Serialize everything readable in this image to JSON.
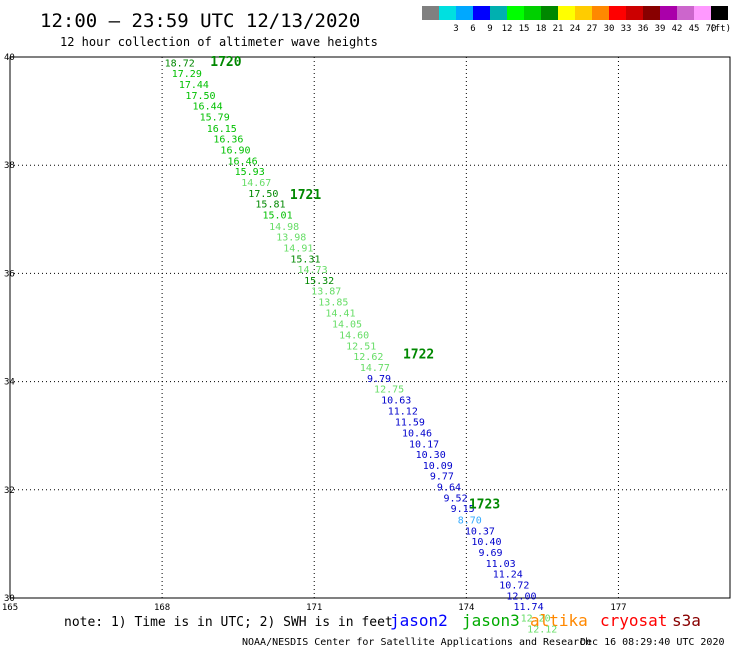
{
  "header": {
    "title": "12:00 — 23:59 UTC 12/13/2020",
    "subtitle": "12 hour collection of altimeter wave heights"
  },
  "legend": {
    "unit": "(ft)",
    "swatches": [
      {
        "color": "#808080",
        "label": ""
      },
      {
        "color": "#00e0e0",
        "label": "3"
      },
      {
        "color": "#00a8ff",
        "label": "6"
      },
      {
        "color": "#0000ff",
        "label": "9"
      },
      {
        "color": "#00b0b0",
        "label": "12"
      },
      {
        "color": "#00ff00",
        "label": "15"
      },
      {
        "color": "#00d000",
        "label": "18"
      },
      {
        "color": "#008800",
        "label": "21"
      },
      {
        "color": "#ffff00",
        "label": "24"
      },
      {
        "color": "#ffcc00",
        "label": "27"
      },
      {
        "color": "#ff8800",
        "label": "30"
      },
      {
        "color": "#ff0000",
        "label": "33"
      },
      {
        "color": "#cc0000",
        "label": "36"
      },
      {
        "color": "#880000",
        "label": "39"
      },
      {
        "color": "#aa00aa",
        "label": "42"
      },
      {
        "color": "#cc66cc",
        "label": "45"
      },
      {
        "color": "#ff99ff",
        "label": "70"
      },
      {
        "color": "#000000",
        "label": ""
      }
    ]
  },
  "axes": {
    "lon_ticks": [
      {
        "lon": 165,
        "label": "165"
      },
      {
        "lon": 168,
        "label": "168"
      },
      {
        "lon": 171,
        "label": "171"
      },
      {
        "lon": 174,
        "label": "174"
      },
      {
        "lon": 177,
        "label": "177"
      }
    ],
    "lat_ticks": [
      {
        "lat": 40,
        "label": "40"
      },
      {
        "lat": 38,
        "label": "38"
      },
      {
        "lat": 36,
        "label": "36"
      },
      {
        "lat": 34,
        "label": "34"
      },
      {
        "lat": 32,
        "label": "32"
      },
      {
        "lat": 30,
        "label": "30"
      }
    ]
  },
  "chart_data": {
    "type": "scatter",
    "title": "12:00 — 23:59 UTC 12/13/2020",
    "subtitle": "12 hour collection of altimeter wave heights",
    "xlim": [
      165,
      179.2
    ],
    "ylim": [
      30,
      40
    ],
    "grid": true,
    "colors": {
      "jason2": "#0000ff",
      "jason3": "#00aa00",
      "altika": "#ff8800",
      "cryosat": "#ff0000",
      "s3a": "#880000",
      "dark_green": "#008800",
      "green": "#00c000",
      "light_green": "#66dd66",
      "blue": "#0000cc",
      "light_blue": "#33aaff"
    },
    "points": [
      {
        "lon": 168.05,
        "lat": 39.9,
        "label": "18.72",
        "color": "#008800"
      },
      {
        "lon": 168.19,
        "lat": 39.7,
        "label": "17.29",
        "color": "#00c000"
      },
      {
        "lon": 168.33,
        "lat": 39.5,
        "label": "17.44",
        "color": "#00c000"
      },
      {
        "lon": 168.46,
        "lat": 39.3,
        "label": "17.50",
        "color": "#00c000"
      },
      {
        "lon": 168.6,
        "lat": 39.1,
        "label": "16.44",
        "color": "#00c000"
      },
      {
        "lon": 168.74,
        "lat": 38.9,
        "label": "15.79",
        "color": "#00c000"
      },
      {
        "lon": 168.88,
        "lat": 38.69,
        "label": "16.15",
        "color": "#00c000"
      },
      {
        "lon": 169.01,
        "lat": 38.49,
        "label": "16.36",
        "color": "#00c000"
      },
      {
        "lon": 169.15,
        "lat": 38.29,
        "label": "16.90",
        "color": "#00c000"
      },
      {
        "lon": 169.29,
        "lat": 38.09,
        "label": "16.46",
        "color": "#00c000"
      },
      {
        "lon": 169.43,
        "lat": 37.89,
        "label": "15.93",
        "color": "#00c000"
      },
      {
        "lon": 169.56,
        "lat": 37.69,
        "label": "14.67",
        "color": "#66dd66"
      },
      {
        "lon": 169.7,
        "lat": 37.49,
        "label": "17.50",
        "color": "#008800"
      },
      {
        "lon": 169.84,
        "lat": 37.29,
        "label": "15.81",
        "color": "#008800"
      },
      {
        "lon": 169.98,
        "lat": 37.09,
        "label": "15.01",
        "color": "#00c000"
      },
      {
        "lon": 170.11,
        "lat": 36.88,
        "label": "14.98",
        "color": "#66dd66"
      },
      {
        "lon": 170.25,
        "lat": 36.68,
        "label": "13.98",
        "color": "#66dd66"
      },
      {
        "lon": 170.39,
        "lat": 36.48,
        "label": "14.91",
        "color": "#66dd66"
      },
      {
        "lon": 170.53,
        "lat": 36.28,
        "label": "15.31",
        "color": "#008800"
      },
      {
        "lon": 170.67,
        "lat": 36.08,
        "label": "14.73",
        "color": "#66dd66"
      },
      {
        "lon": 170.8,
        "lat": 35.88,
        "label": "15.32",
        "color": "#008800"
      },
      {
        "lon": 170.94,
        "lat": 35.68,
        "label": "13.87",
        "color": "#66dd66"
      },
      {
        "lon": 171.08,
        "lat": 35.48,
        "label": "13.85",
        "color": "#66dd66"
      },
      {
        "lon": 171.22,
        "lat": 35.28,
        "label": "14.41",
        "color": "#66dd66"
      },
      {
        "lon": 171.35,
        "lat": 35.07,
        "label": "14.05",
        "color": "#66dd66"
      },
      {
        "lon": 171.49,
        "lat": 34.87,
        "label": "14.60",
        "color": "#66dd66"
      },
      {
        "lon": 171.63,
        "lat": 34.67,
        "label": "12.51",
        "color": "#66dd66"
      },
      {
        "lon": 171.77,
        "lat": 34.47,
        "label": "12.62",
        "color": "#66dd66"
      },
      {
        "lon": 171.9,
        "lat": 34.27,
        "label": "14.77",
        "color": "#66dd66"
      },
      {
        "lon": 172.04,
        "lat": 34.07,
        "label": "9.79",
        "color": "#0000cc"
      },
      {
        "lon": 172.18,
        "lat": 33.87,
        "label": "12.75",
        "color": "#66dd66"
      },
      {
        "lon": 172.32,
        "lat": 33.67,
        "label": "10.63",
        "color": "#0000cc"
      },
      {
        "lon": 172.45,
        "lat": 33.47,
        "label": "11.12",
        "color": "#0000cc"
      },
      {
        "lon": 172.59,
        "lat": 33.26,
        "label": "11.59",
        "color": "#0000cc"
      },
      {
        "lon": 172.73,
        "lat": 33.06,
        "label": "10.46",
        "color": "#0000cc"
      },
      {
        "lon": 172.87,
        "lat": 32.86,
        "label": "10.17",
        "color": "#0000cc"
      },
      {
        "lon": 173.0,
        "lat": 32.66,
        "label": "10.30",
        "color": "#0000cc"
      },
      {
        "lon": 173.14,
        "lat": 32.46,
        "label": "10.09",
        "color": "#0000cc"
      },
      {
        "lon": 173.28,
        "lat": 32.26,
        "label": "9.77",
        "color": "#0000cc"
      },
      {
        "lon": 173.42,
        "lat": 32.06,
        "label": "9.64",
        "color": "#0000cc"
      },
      {
        "lon": 173.55,
        "lat": 31.86,
        "label": "9.52",
        "color": "#0000cc"
      },
      {
        "lon": 173.69,
        "lat": 31.66,
        "label": "9.15",
        "color": "#0000cc"
      },
      {
        "lon": 173.83,
        "lat": 31.45,
        "label": "8.70",
        "color": "#33aaff"
      },
      {
        "lon": 173.97,
        "lat": 31.25,
        "label": "10.37",
        "color": "#0000cc"
      },
      {
        "lon": 174.1,
        "lat": 31.05,
        "label": "10.40",
        "color": "#0000cc"
      },
      {
        "lon": 174.24,
        "lat": 30.85,
        "label": "9.69",
        "color": "#0000cc"
      },
      {
        "lon": 174.38,
        "lat": 30.65,
        "label": "11.03",
        "color": "#0000cc"
      },
      {
        "lon": 174.52,
        "lat": 30.45,
        "label": "11.24",
        "color": "#0000cc"
      },
      {
        "lon": 174.65,
        "lat": 30.25,
        "label": "10.72",
        "color": "#0000cc"
      },
      {
        "lon": 174.79,
        "lat": 30.05,
        "label": "12.00",
        "color": "#0000cc"
      },
      {
        "lon": 174.93,
        "lat": 29.85,
        "label": "11.74",
        "color": "#0000cc"
      },
      {
        "lon": 175.07,
        "lat": 29.64,
        "label": "12.20",
        "color": "#66dd66"
      },
      {
        "lon": 175.2,
        "lat": 29.44,
        "label": "12.12",
        "color": "#66dd66"
      }
    ],
    "time_labels": [
      {
        "lon": 168.95,
        "lat": 39.93,
        "label": "1720",
        "color": "#008800"
      },
      {
        "lon": 170.52,
        "lat": 37.47,
        "label": "1721",
        "color": "#008800"
      },
      {
        "lon": 172.75,
        "lat": 34.52,
        "label": "1722",
        "color": "#008800"
      },
      {
        "lon": 174.05,
        "lat": 31.75,
        "label": "1723",
        "color": "#008800"
      }
    ]
  },
  "footer": {
    "note": "note: 1) Time is in UTC; 2) SWH is in feet",
    "satellites": [
      {
        "name": "jason2",
        "color": "#0000ff"
      },
      {
        "name": "jason3",
        "color": "#00aa00"
      },
      {
        "name": "altika",
        "color": "#ff8800"
      },
      {
        "name": "cryosat",
        "color": "#ff0000"
      },
      {
        "name": "s3a",
        "color": "#880000"
      }
    ],
    "credit": "NOAA/NESDIS Center for Satellite Applications and Research",
    "timestamp": "Dec 16 08:29:40 UTC 2020"
  }
}
